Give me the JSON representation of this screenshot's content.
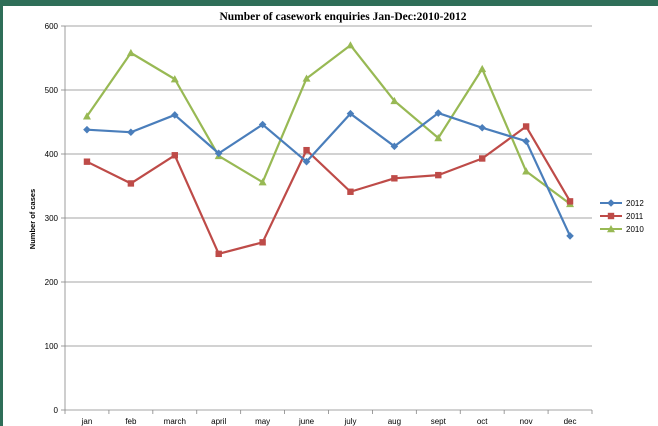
{
  "chart_data": {
    "type": "line",
    "title": "Number of casework enquiries Jan-Dec:2010-2012",
    "xlabel": "",
    "ylabel": "Number of cases",
    "categories": [
      "jan",
      "feb",
      "march",
      "april",
      "may",
      "june",
      "july",
      "aug",
      "sept",
      "oct",
      "nov",
      "dec"
    ],
    "ylim": [
      0,
      600
    ],
    "yticks": [
      "0",
      "100",
      "200",
      "300",
      "400",
      "500",
      "600"
    ],
    "grid": true,
    "legend_position": "right",
    "series": [
      {
        "name": "2012",
        "color": "#4a7ebb",
        "marker": "diamond",
        "values": [
          438,
          434,
          461,
          401,
          446,
          388,
          463,
          412,
          464,
          441,
          420,
          272
        ]
      },
      {
        "name": "2011",
        "color": "#be4b48",
        "marker": "square",
        "values": [
          388,
          354,
          398,
          244,
          262,
          406,
          341,
          362,
          367,
          393,
          443,
          326
        ]
      },
      {
        "name": "2010",
        "color": "#98b954",
        "marker": "triangle",
        "values": [
          459,
          558,
          517,
          397,
          356,
          518,
          570,
          483,
          425,
          533,
          373,
          322
        ]
      }
    ]
  }
}
